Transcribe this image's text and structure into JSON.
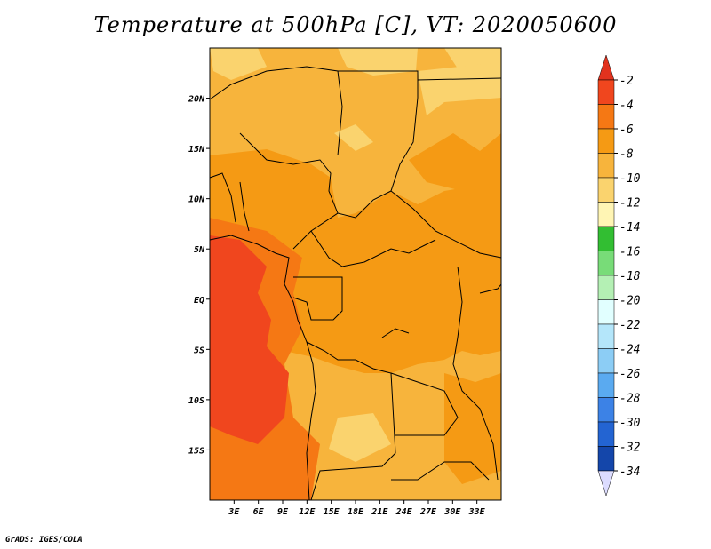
{
  "title": "Temperature at 500hPa [C], VT: 2020050600",
  "credit": "GrADS: IGES/COLA",
  "map": {
    "lon_range": [
      0,
      36
    ],
    "lat_range": [
      -20,
      25
    ],
    "x_ticks": [
      {
        "lon": 3,
        "label": "3E"
      },
      {
        "lon": 6,
        "label": "6E"
      },
      {
        "lon": 9,
        "label": "9E"
      },
      {
        "lon": 12,
        "label": "12E"
      },
      {
        "lon": 15,
        "label": "15E"
      },
      {
        "lon": 18,
        "label": "18E"
      },
      {
        "lon": 21,
        "label": "21E"
      },
      {
        "lon": 24,
        "label": "24E"
      },
      {
        "lon": 27,
        "label": "27E"
      },
      {
        "lon": 30,
        "label": "30E"
      },
      {
        "lon": 33,
        "label": "33E"
      }
    ],
    "y_ticks": [
      {
        "lat": 20,
        "label": "20N"
      },
      {
        "lat": 15,
        "label": "15N"
      },
      {
        "lat": 10,
        "label": "10N"
      },
      {
        "lat": 5,
        "label": "5N"
      },
      {
        "lat": 0,
        "label": "EQ"
      },
      {
        "lat": -5,
        "label": "5S"
      },
      {
        "lat": -10,
        "label": "10S"
      },
      {
        "lat": -15,
        "label": "15S"
      }
    ]
  },
  "colorbar": {
    "labels": [
      "-2",
      "-4",
      "-6",
      "-8",
      "-10",
      "-12",
      "-14",
      "-16",
      "-18",
      "-20",
      "-22",
      "-24",
      "-26",
      "-28",
      "-30",
      "-32",
      "-34"
    ],
    "colors": [
      "#f0461e",
      "#f57814",
      "#f59a14",
      "#f7b43c",
      "#fad36e",
      "#fff5b4",
      "#32be32",
      "#78dc78",
      "#b4f0b4",
      "#e1ffff",
      "#b4e6fa",
      "#8ccdf5",
      "#5aaaf0",
      "#3c82e6",
      "#2364d2",
      "#1446aa",
      "#000e78"
    ],
    "top_color": "#e1321e",
    "bottom_color": "#dcdcff"
  }
}
